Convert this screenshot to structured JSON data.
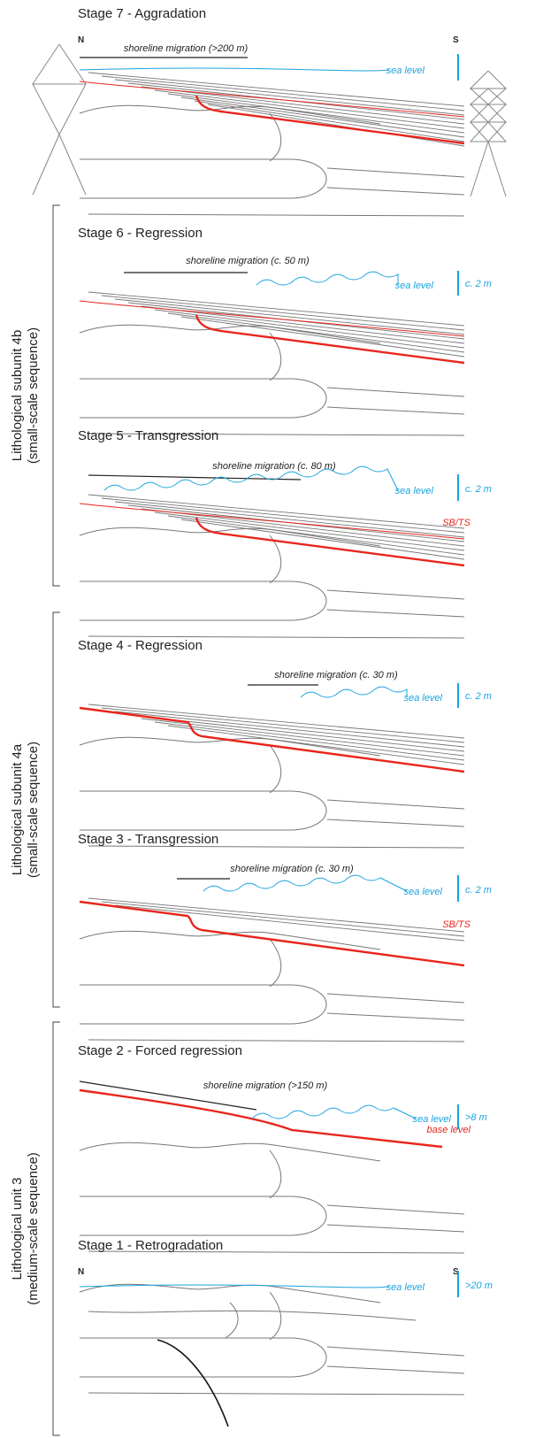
{
  "groups": [
    {
      "label": "Lithological subunit 4b",
      "sublabel": "(small-scale sequence)"
    },
    {
      "label": "Lithological subunit 4a",
      "sublabel": "(small-scale sequence)"
    },
    {
      "label": "Lithological unit 3",
      "sublabel": "(medium-scale sequence)"
    }
  ],
  "stages": [
    {
      "title": "Stage 7 - Aggradation",
      "north": "N",
      "south": "S",
      "migration": "shoreline migration (>200 m)",
      "sea_level": "sea level"
    },
    {
      "title": "Stage 6 - Regression",
      "migration": "shoreline migration (c. 50 m)",
      "sea_level": "sea level",
      "change": "c. 2 m"
    },
    {
      "title": "Stage 5 - Transgression",
      "migration": "shoreline migration (c. 80 m)",
      "sea_level": "sea level",
      "change": "c. 2 m",
      "surface": "SB/TS"
    },
    {
      "title": "Stage 4 - Regression",
      "migration": "shoreline migration (c. 30 m)",
      "sea_level": "sea level",
      "change": "c. 2 m"
    },
    {
      "title": "Stage 3 - Transgression",
      "migration": "shoreline migration (c. 30 m)",
      "sea_level": "sea level",
      "change": "c. 2 m",
      "surface": "SB/TS"
    },
    {
      "title": "Stage 2 - Forced regression",
      "migration": "shoreline migration (>150 m)",
      "sea_level": "sea level",
      "change": ">8 m",
      "surface": "base level"
    },
    {
      "title": "Stage 1 - Retrogradation",
      "north": "N",
      "south": "S",
      "sea_level": "sea level",
      "change": ">20 m"
    }
  ]
}
